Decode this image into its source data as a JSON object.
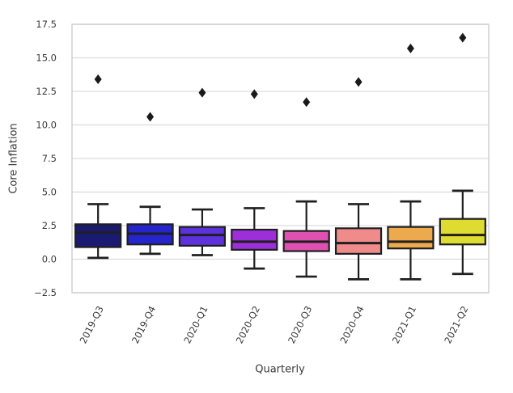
{
  "figure": {
    "background": "#ffffff"
  },
  "chart_data": {
    "type": "box",
    "title": "",
    "xlabel": "Quarterly",
    "ylabel": "Core Inflation",
    "legend": "none",
    "grid": "horizontal",
    "ylim": [
      -2.5,
      17.5
    ],
    "yticks": [
      {
        "value": 17.5,
        "label": "17.5"
      },
      {
        "value": 15.0,
        "label": "15.0"
      },
      {
        "value": 12.5,
        "label": "12.5"
      },
      {
        "value": 10.0,
        "label": "10.0"
      },
      {
        "value": 7.5,
        "label": "7.5"
      },
      {
        "value": 5.0,
        "label": "5.0"
      },
      {
        "value": 2.5,
        "label": "2.5"
      },
      {
        "value": 0.0,
        "label": "0.0"
      },
      {
        "value": -2.5,
        "label": "−2.5"
      }
    ],
    "categories": [
      "2019-Q3",
      "2019-Q4",
      "2020-Q1",
      "2020-Q2",
      "2020-Q3",
      "2020-Q4",
      "2021-Q1",
      "2021-Q2"
    ],
    "boxes": [
      {
        "category": "2019-Q3",
        "whisker_low": 0.1,
        "q1": 0.9,
        "median": 2.0,
        "q3": 2.6,
        "whisker_high": 4.1,
        "outliers": [
          13.4
        ],
        "color": "#1a1a73"
      },
      {
        "category": "2019-Q4",
        "whisker_low": 0.4,
        "q1": 1.1,
        "median": 1.9,
        "q3": 2.6,
        "whisker_high": 3.9,
        "outliers": [
          10.6
        ],
        "color": "#2525cd"
      },
      {
        "category": "2020-Q1",
        "whisker_low": 0.3,
        "q1": 1.0,
        "median": 1.8,
        "q3": 2.4,
        "whisker_high": 3.7,
        "outliers": [
          12.4
        ],
        "color": "#5b32dc"
      },
      {
        "category": "2020-Q2",
        "whisker_low": -0.7,
        "q1": 0.7,
        "median": 1.3,
        "q3": 2.2,
        "whisker_high": 3.8,
        "outliers": [
          12.3
        ],
        "color": "#9c2fd9"
      },
      {
        "category": "2020-Q3",
        "whisker_low": -1.3,
        "q1": 0.6,
        "median": 1.3,
        "q3": 2.1,
        "whisker_high": 4.3,
        "outliers": [
          11.7
        ],
        "color": "#de51b1"
      },
      {
        "category": "2020-Q4",
        "whisker_low": -1.5,
        "q1": 0.4,
        "median": 1.2,
        "q3": 2.3,
        "whisker_high": 4.1,
        "outliers": [
          13.2
        ],
        "color": "#ef8b8b"
      },
      {
        "category": "2021-Q1",
        "whisker_low": -1.5,
        "q1": 0.8,
        "median": 1.3,
        "q3": 2.4,
        "whisker_high": 4.3,
        "outliers": [
          15.7
        ],
        "color": "#eda94e"
      },
      {
        "category": "2021-Q2",
        "whisker_low": -1.1,
        "q1": 1.1,
        "median": 1.8,
        "q3": 3.0,
        "whisker_high": 5.1,
        "outliers": [
          16.5
        ],
        "color": "#dfdc31"
      }
    ],
    "style": {
      "edge_color": "#1f1f1f",
      "outlier_color": "#1a1a1a",
      "outlier_marker": "diamond",
      "grid_color": "#dcdcdc",
      "spine_color": "#c9c9c9",
      "tick_text_color": "#3a3a3a"
    }
  }
}
